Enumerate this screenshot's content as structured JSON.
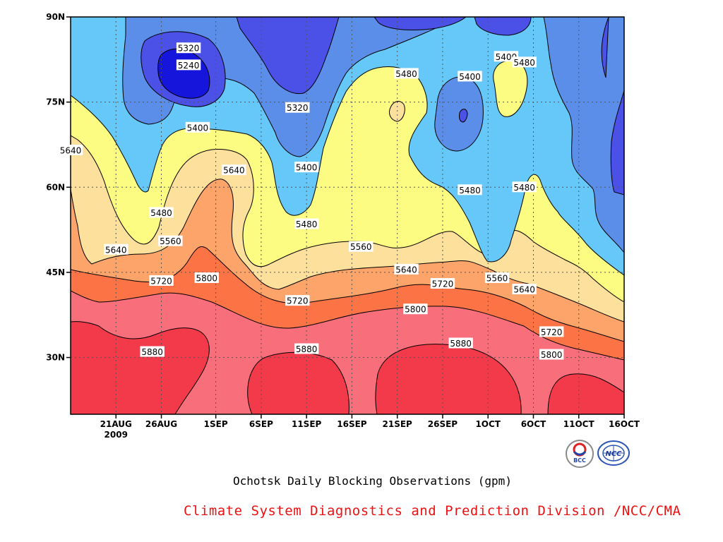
{
  "chart_data": {
    "type": "contour",
    "title": "Ochotsk Daily Blocking Observations (gpm)",
    "x_ticks": [
      "21AUG",
      "26AUG",
      "1SEP",
      "6SEP",
      "11SEP",
      "16SEP",
      "21SEP",
      "26SEP",
      "1OCT",
      "6OCT",
      "11OCT",
      "16OCT"
    ],
    "x_year_label": "2009",
    "x_range": [
      "16AUG2009",
      "16OCT2009"
    ],
    "y_ticks": [
      "30N",
      "45N",
      "60N",
      "75N",
      "90N"
    ],
    "y_range": [
      20,
      90
    ],
    "grid": true,
    "contour_interval": 80,
    "contour_levels": [
      5240,
      5320,
      5400,
      5480,
      5560,
      5640,
      5720,
      5800,
      5880
    ],
    "fill_colors": {
      "lt5240": "#1515dc",
      "5240-5320": "#4b50e6",
      "5320-5400": "#5b8ee8",
      "5400-5480": "#66c8f8",
      "5480-5560": "#fcfc82",
      "5560-5640": "#fde09c",
      "5640-5720": "#fda46a",
      "5720-5800": "#fc7346",
      "5800-5880": "#f86e7a",
      "gt5880": "#f23a4a"
    },
    "labels": [
      {
        "text": "5320",
        "date": "29AUG",
        "lat": 84.5
      },
      {
        "text": "5240",
        "date": "29AUG",
        "lat": 81.5
      },
      {
        "text": "5400",
        "date": "30AUG",
        "lat": 70.5
      },
      {
        "text": "5640",
        "date": "16AUG",
        "lat": 66.5
      },
      {
        "text": "5480",
        "date": "26AUG",
        "lat": 55.5
      },
      {
        "text": "5640",
        "date": "21AUG",
        "lat": 49.0
      },
      {
        "text": "5560",
        "date": "27AUG",
        "lat": 50.5
      },
      {
        "text": "5720",
        "date": "26AUG",
        "lat": 43.5
      },
      {
        "text": "5800",
        "date": "31AUG",
        "lat": 44.0
      },
      {
        "text": "5880",
        "date": "25AUG",
        "lat": 31.0
      },
      {
        "text": "5640",
        "date": "3SEP",
        "lat": 63.0
      },
      {
        "text": "5320",
        "date": "10SEP",
        "lat": 74.0
      },
      {
        "text": "5400",
        "date": "11SEP",
        "lat": 63.5
      },
      {
        "text": "5480",
        "date": "11SEP",
        "lat": 53.5
      },
      {
        "text": "5720",
        "date": "10SEP",
        "lat": 40.0
      },
      {
        "text": "5880",
        "date": "11SEP",
        "lat": 31.5
      },
      {
        "text": "5560",
        "date": "17SEP",
        "lat": 49.5
      },
      {
        "text": "5480",
        "date": "22SEP",
        "lat": 80.0
      },
      {
        "text": "5640",
        "date": "22SEP",
        "lat": 45.5
      },
      {
        "text": "5800",
        "date": "23SEP",
        "lat": 38.5
      },
      {
        "text": "5720",
        "date": "26SEP",
        "lat": 43.0
      },
      {
        "text": "5880",
        "date": "28SEP",
        "lat": 32.5
      },
      {
        "text": "5400",
        "date": "3OCT",
        "lat": 83.0
      },
      {
        "text": "5400",
        "date": "29SEP",
        "lat": 79.5
      },
      {
        "text": "5480",
        "date": "29SEP",
        "lat": 59.5
      },
      {
        "text": "5480",
        "date": "5OCT",
        "lat": 82.0
      },
      {
        "text": "5480",
        "date": "5OCT",
        "lat": 60.0
      },
      {
        "text": "5560",
        "date": "2OCT",
        "lat": 44.0
      },
      {
        "text": "5640",
        "date": "5OCT",
        "lat": 42.0
      },
      {
        "text": "5720",
        "date": "8OCT",
        "lat": 34.5
      },
      {
        "text": "5800",
        "date": "8OCT",
        "lat": 30.5
      }
    ]
  },
  "footer": {
    "credit": "Climate System Diagnostics and Prediction Division /NCC/CMA",
    "logos": [
      "BCC",
      "NCC"
    ]
  }
}
